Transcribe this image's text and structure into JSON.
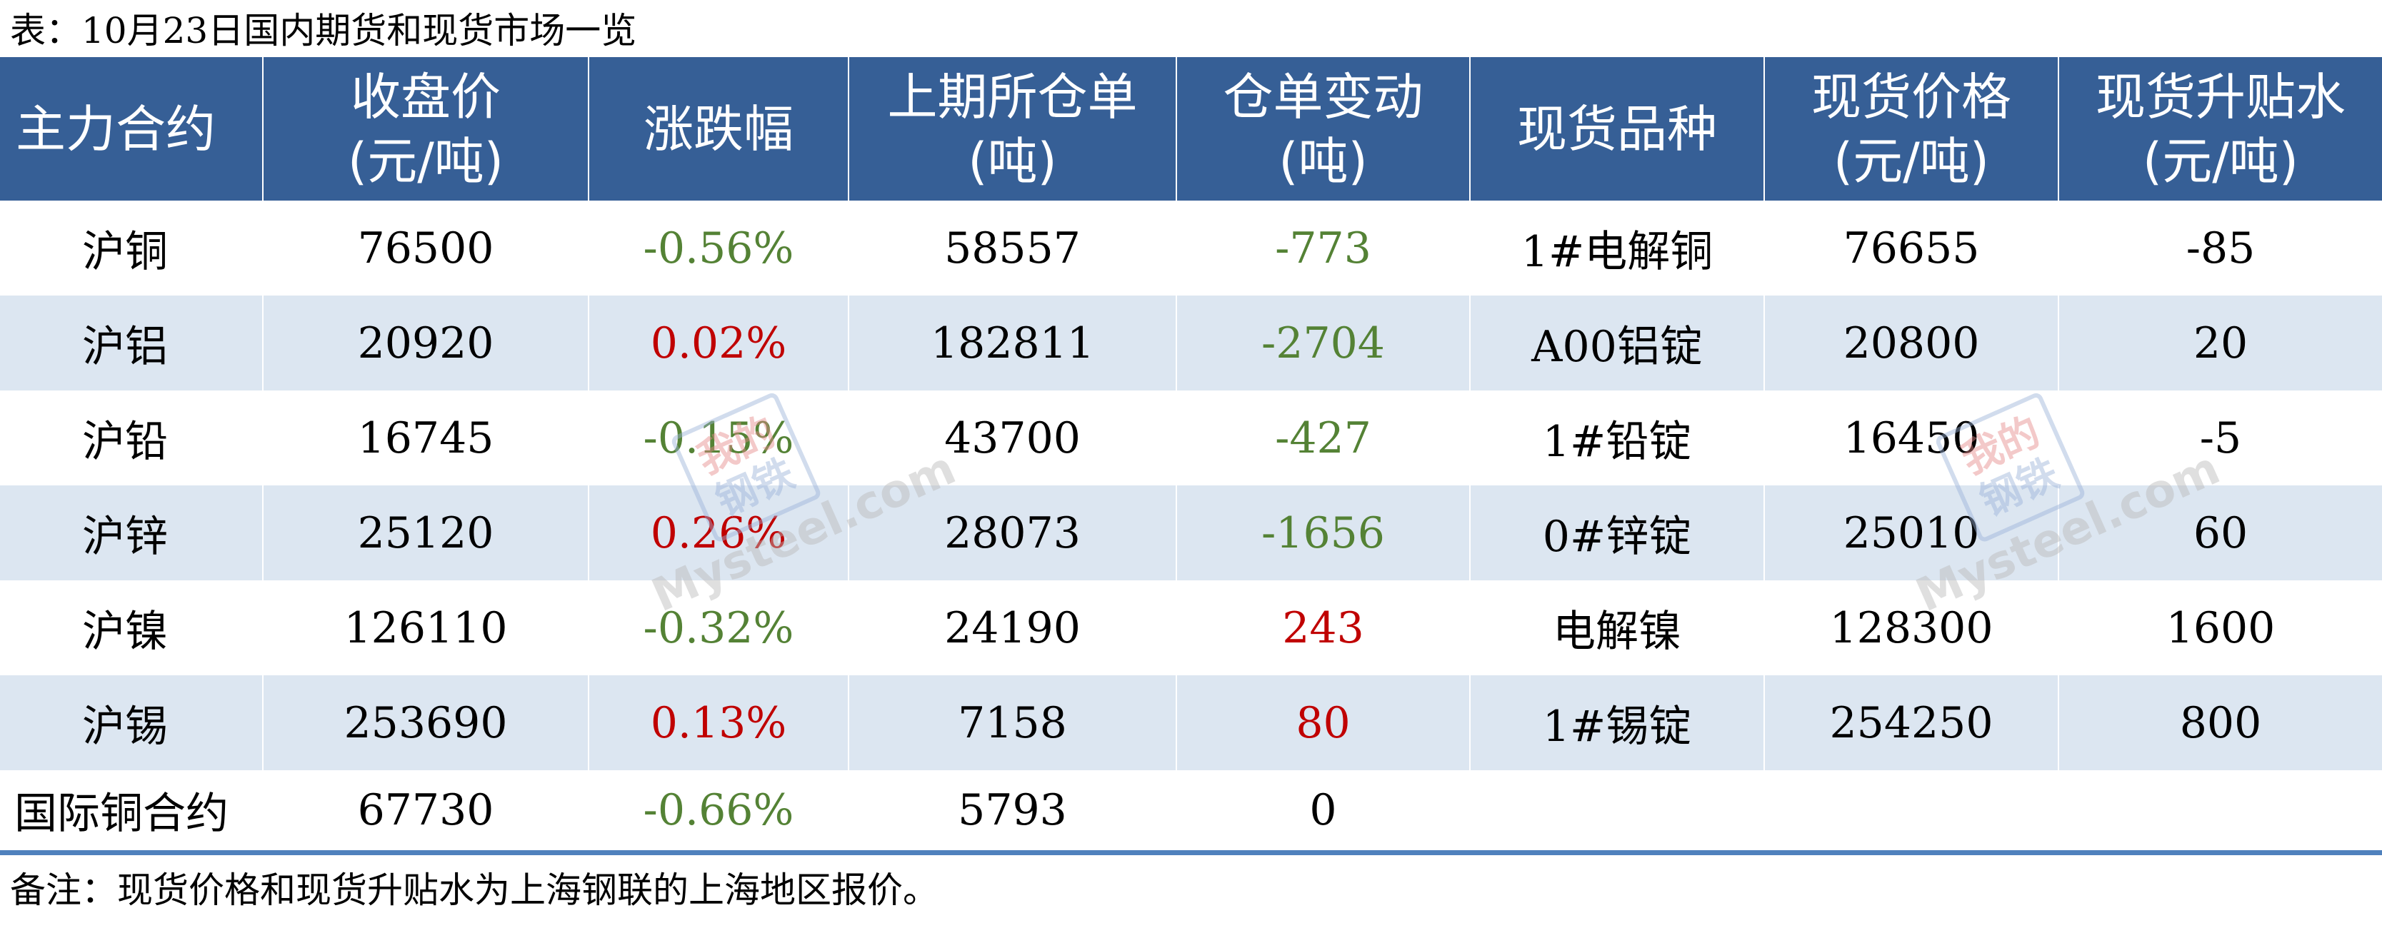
{
  "title": "表：10月23日国内期货和现货市场一览",
  "headers": {
    "contract": "主力合约",
    "close_l1": "收盘价",
    "close_l2": "(元/吨)",
    "change": "涨跌幅",
    "warrant_l1": "上期所仓单",
    "warrant_l2": "(吨)",
    "warrant_change_l1": "仓单变动",
    "warrant_change_l2": "(吨)",
    "spot_variety": "现货品种",
    "spot_price_l1": "现货价格",
    "spot_price_l2": "(元/吨)",
    "basis_l1": "现货升贴水",
    "basis_l2": "(元/吨)"
  },
  "rows": [
    {
      "contract": "沪铜",
      "close": "76500",
      "change": "-0.56%",
      "warrant": "58557",
      "warrant_change": "-773",
      "spot_variety": "1#电解铜",
      "spot_price": "76655",
      "basis": "-85"
    },
    {
      "contract": "沪铝",
      "close": "20920",
      "change": "0.02%",
      "warrant": "182811",
      "warrant_change": "-2704",
      "spot_variety": "A00铝锭",
      "spot_price": "20800",
      "basis": "20"
    },
    {
      "contract": "沪铅",
      "close": "16745",
      "change": "-0.15%",
      "warrant": "43700",
      "warrant_change": "-427",
      "spot_variety": "1#铅锭",
      "spot_price": "16450",
      "basis": "-5"
    },
    {
      "contract": "沪锌",
      "close": "25120",
      "change": "0.26%",
      "warrant": "28073",
      "warrant_change": "-1656",
      "spot_variety": "0#锌锭",
      "spot_price": "25010",
      "basis": "60"
    },
    {
      "contract": "沪镍",
      "close": "126110",
      "change": "-0.32%",
      "warrant": "24190",
      "warrant_change": "243",
      "spot_variety": "电解镍",
      "spot_price": "128300",
      "basis": "1600"
    },
    {
      "contract": "沪锡",
      "close": "253690",
      "change": "0.13%",
      "warrant": "7158",
      "warrant_change": "80",
      "spot_variety": "1#锡锭",
      "spot_price": "254250",
      "basis": "800"
    },
    {
      "contract": "国际铜合约",
      "close": "67730",
      "change": "-0.66%",
      "warrant": "5793",
      "warrant_change": "0",
      "spot_variety": "",
      "spot_price": "",
      "basis": ""
    }
  ],
  "note": "备注：现货价格和现货升贴水为上海钢联的上海地区报价。",
  "watermark": {
    "badge_line1": "我的",
    "badge_line2": "钢铁",
    "text": "Mysteel.com"
  },
  "colors": {
    "header_bg": "#365f96",
    "alt_row_bg": "#dce6f1",
    "up": "#c00000",
    "down": "#548235",
    "bottom_rule": "#4f81bd"
  }
}
